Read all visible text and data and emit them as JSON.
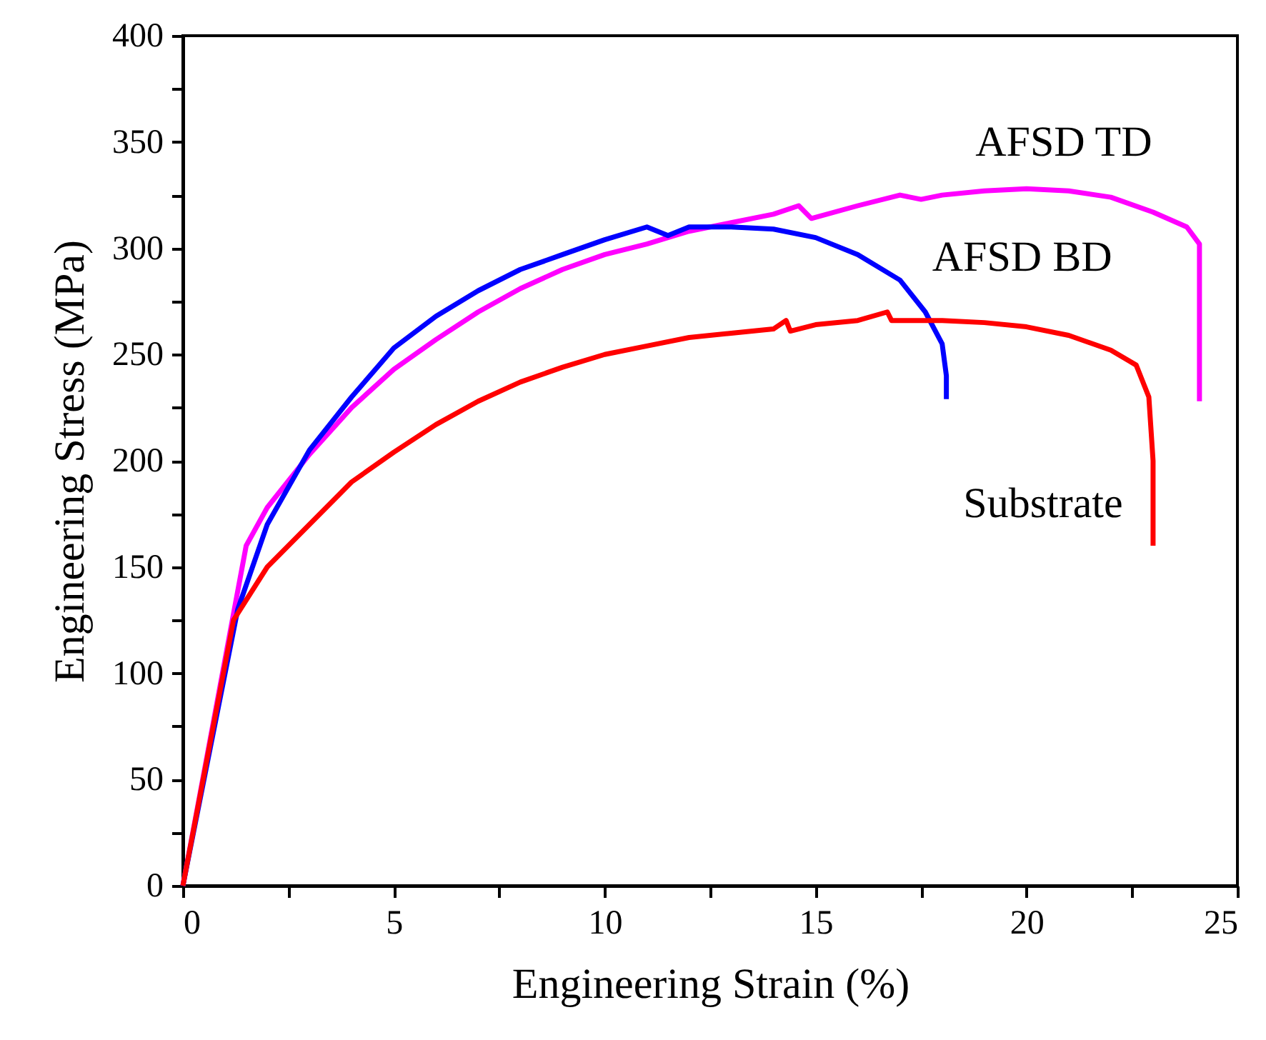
{
  "chart_data": {
    "type": "line",
    "xlabel": "Engineering Strain (%)",
    "ylabel": "Engineering Stress (MPa)",
    "xlim": [
      0,
      25
    ],
    "ylim": [
      0,
      400
    ],
    "xticks": [
      0,
      {
        "value": 2.5,
        "label": null
      },
      5,
      {
        "value": 7.5,
        "label": null
      },
      10,
      {
        "value": 12.5,
        "label": null
      },
      15,
      {
        "value": 17.5,
        "label": null
      },
      20,
      {
        "value": 22.5,
        "label": null
      },
      25
    ],
    "yticks": [
      0,
      {
        "value": 25,
        "label": null
      },
      50,
      {
        "value": 75,
        "label": null
      },
      100,
      {
        "value": 125,
        "label": null
      },
      150,
      {
        "value": 175,
        "label": null
      },
      200,
      {
        "value": 225,
        "label": null
      },
      250,
      {
        "value": 275,
        "label": null
      },
      300,
      {
        "value": 325,
        "label": null
      },
      350,
      {
        "value": 375,
        "label": null
      },
      400
    ],
    "grid": false,
    "marker": "none",
    "line_style": "solid",
    "series": [
      {
        "name": "AFSD TD",
        "color": "#ff00ff",
        "x": [
          0,
          1.5,
          2,
          3,
          4,
          5,
          6,
          7,
          8,
          9,
          10,
          11,
          12,
          13,
          14,
          14.6,
          14.9,
          16,
          17,
          17.5,
          18,
          19,
          20,
          21,
          22,
          23,
          23.8,
          24.1,
          24.1,
          24.1
        ],
        "values": [
          0,
          160,
          178,
          203,
          225,
          243,
          257,
          270,
          281,
          290,
          297,
          302,
          308,
          312,
          316,
          320,
          314,
          320,
          325,
          323,
          325,
          327,
          328,
          327,
          324,
          317,
          310,
          302,
          260,
          228
        ]
      },
      {
        "name": "AFSD BD",
        "color": "#0000ff",
        "x": [
          0,
          1.3,
          2,
          3,
          4,
          5,
          6,
          7,
          8,
          9,
          10,
          11,
          11.5,
          12,
          13,
          14,
          15,
          16,
          17,
          17.6,
          18,
          18.1,
          18.1
        ],
        "values": [
          0,
          130,
          170,
          205,
          230,
          253,
          268,
          280,
          290,
          297,
          304,
          310,
          306,
          310,
          310,
          309,
          305,
          297,
          285,
          270,
          255,
          240,
          229
        ]
      },
      {
        "name": "Substrate",
        "color": "#ff0000",
        "x": [
          0,
          1.2,
          2,
          3,
          4,
          5,
          6,
          7,
          8,
          9,
          10,
          11,
          12,
          13,
          14,
          14.3,
          14.4,
          15,
          16,
          16.7,
          16.8,
          18,
          19,
          20,
          21,
          22,
          22.6,
          22.9,
          23.0,
          23.0
        ],
        "values": [
          0,
          125,
          150,
          170,
          190,
          204,
          217,
          228,
          237,
          244,
          250,
          254,
          258,
          260,
          262,
          266,
          261,
          264,
          266,
          270,
          266,
          266,
          265,
          263,
          259,
          252,
          245,
          230,
          200,
          160
        ]
      }
    ]
  }
}
